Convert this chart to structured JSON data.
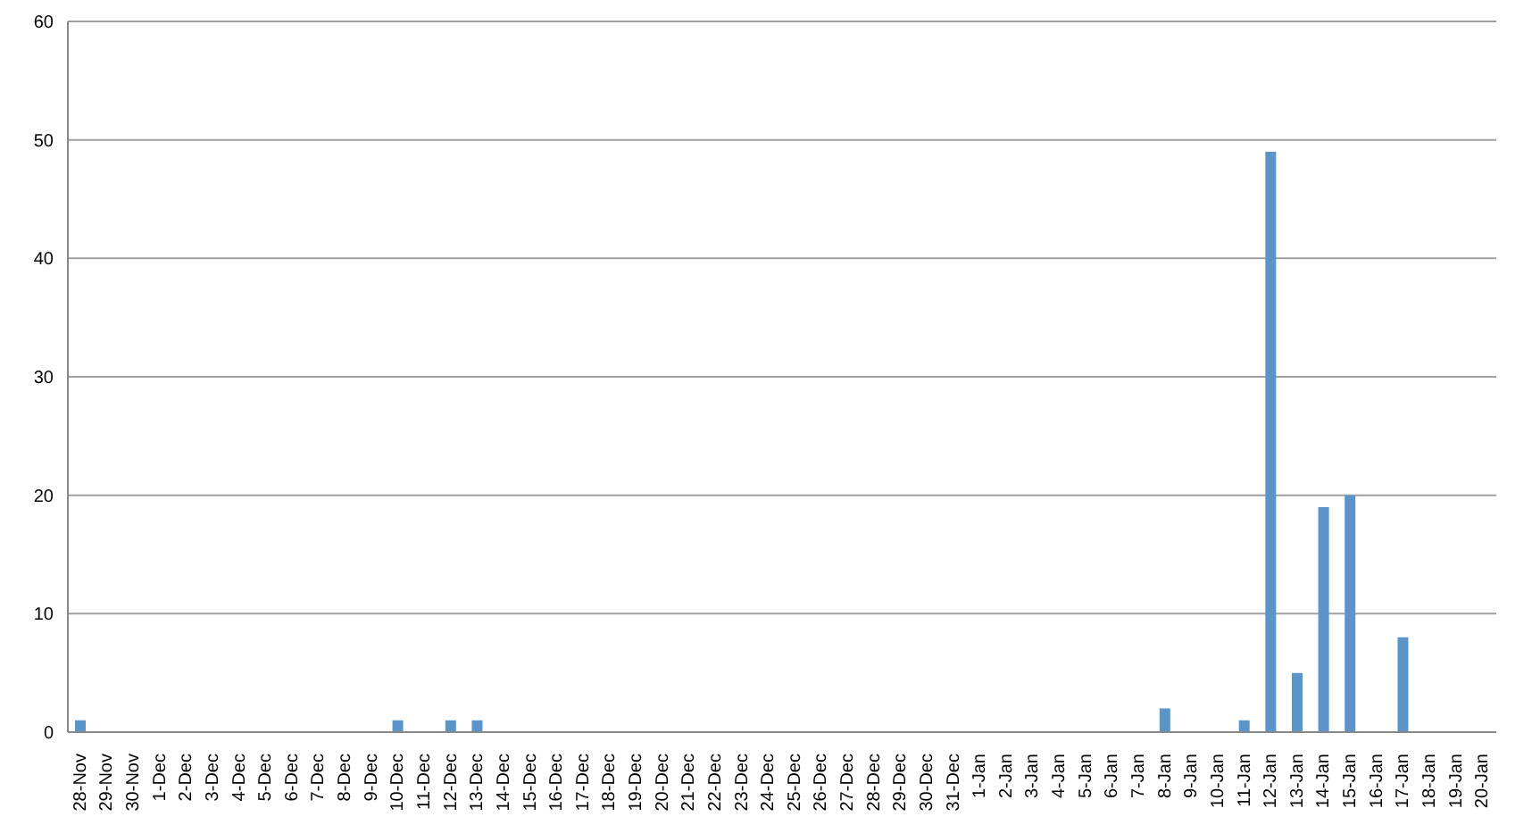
{
  "chart_data": {
    "type": "bar",
    "categories": [
      "28-Nov",
      "29-Nov",
      "30-Nov",
      "1-Dec",
      "2-Dec",
      "3-Dec",
      "4-Dec",
      "5-Dec",
      "6-Dec",
      "7-Dec",
      "8-Dec",
      "9-Dec",
      "10-Dec",
      "11-Dec",
      "12-Dec",
      "13-Dec",
      "14-Dec",
      "15-Dec",
      "16-Dec",
      "17-Dec",
      "18-Dec",
      "19-Dec",
      "20-Dec",
      "21-Dec",
      "22-Dec",
      "23-Dec",
      "24-Dec",
      "25-Dec",
      "26-Dec",
      "27-Dec",
      "28-Dec",
      "29-Dec",
      "30-Dec",
      "31-Dec",
      "1-Jan",
      "2-Jan",
      "3-Jan",
      "4-Jan",
      "5-Jan",
      "6-Jan",
      "7-Jan",
      "8-Jan",
      "9-Jan",
      "10-Jan",
      "11-Jan",
      "12-Jan",
      "13-Jan",
      "14-Jan",
      "15-Jan",
      "16-Jan",
      "17-Jan",
      "18-Jan",
      "19-Jan",
      "20-Jan"
    ],
    "values": [
      1,
      0,
      0,
      0,
      0,
      0,
      0,
      0,
      0,
      0,
      0,
      0,
      1,
      0,
      1,
      1,
      0,
      0,
      0,
      0,
      0,
      0,
      0,
      0,
      0,
      0,
      0,
      0,
      0,
      0,
      0,
      0,
      0,
      0,
      0,
      0,
      0,
      0,
      0,
      0,
      0,
      2,
      0,
      0,
      1,
      49,
      5,
      19,
      20,
      0,
      8,
      0,
      0,
      0
    ],
    "color": "#5b94c8",
    "ylim": [
      0,
      60
    ],
    "yticks": [
      0,
      10,
      20,
      30,
      40,
      50,
      60
    ],
    "grid": "y"
  }
}
